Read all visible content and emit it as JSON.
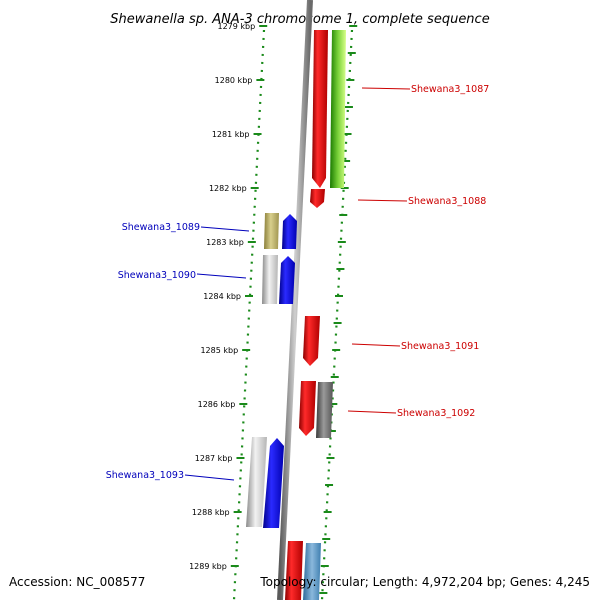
{
  "title": "Shewanella sp. ANA-3 chromosome 1, complete sequence",
  "accession": "Accession: NC_008577",
  "topology": "Topology: circular; Length: 4,972,204 bp; Genes: 4,245",
  "ticks": [
    "1279 kbp",
    "1280 kbp",
    "1281 kbp",
    "1282 kbp",
    "1283 kbp",
    "1284 kbp",
    "1285 kbp",
    "1286 kbp",
    "1287 kbp",
    "1288 kbp",
    "1289 kbp"
  ],
  "colors": {
    "forward_label": "#cc0000",
    "reverse_label": "#0000bb",
    "tick": "#1a8a1a",
    "backbone": "#8a8a8a"
  },
  "genes": [
    {
      "label": "Shewana3_1087",
      "strand": "forward"
    },
    {
      "label": "Shewana3_1088",
      "strand": "forward"
    },
    {
      "label": "Shewana3_1089",
      "strand": "reverse"
    },
    {
      "label": "Shewana3_1090",
      "strand": "reverse"
    },
    {
      "label": "Shewana3_1091",
      "strand": "forward"
    },
    {
      "label": "Shewana3_1092",
      "strand": "forward"
    },
    {
      "label": "Shewana3_1093",
      "strand": "reverse"
    }
  ]
}
